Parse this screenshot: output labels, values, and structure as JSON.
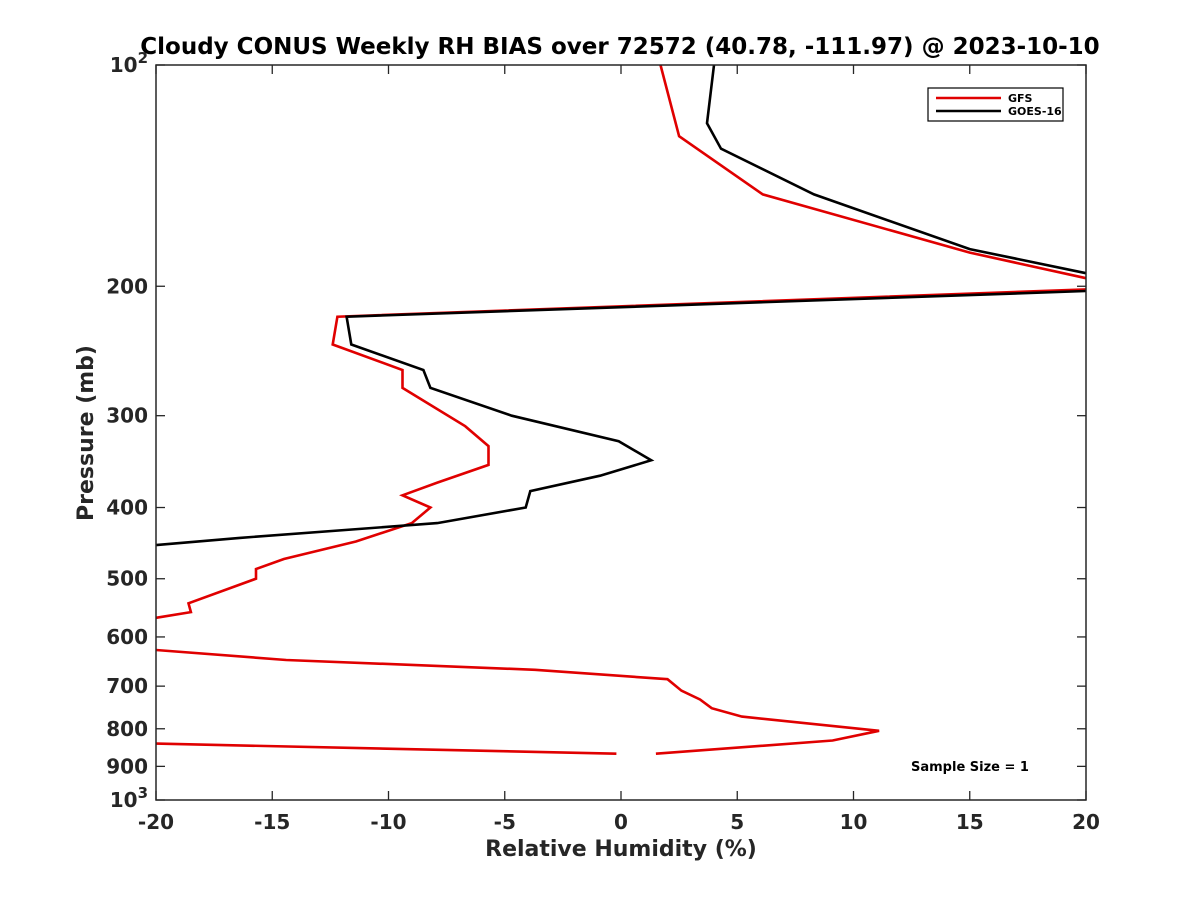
{
  "chart_data": {
    "type": "line",
    "title": "Cloudy CONUS Weekly RH BIAS over 72572 (40.78, -111.97) @ 2023-10-10",
    "xlabel": "Relative Humidity (%)",
    "ylabel": "Pressure (mb)",
    "xlim": [
      -20,
      20
    ],
    "ylim": [
      100,
      1000
    ],
    "yscale": "log",
    "y_reversed": true,
    "grid": false,
    "legend_position": "top-right",
    "x_ticks": [
      {
        "value": -20,
        "label": "-20"
      },
      {
        "value": -15,
        "label": "-15"
      },
      {
        "value": -10,
        "label": "-10"
      },
      {
        "value": -5,
        "label": "-5"
      },
      {
        "value": 0,
        "label": "0"
      },
      {
        "value": 5,
        "label": "5"
      },
      {
        "value": 10,
        "label": "10"
      },
      {
        "value": 15,
        "label": "15"
      },
      {
        "value": 20,
        "label": "20"
      }
    ],
    "y_ticks": [
      {
        "value": 100,
        "base": "10",
        "exp": "2"
      },
      {
        "value": 200,
        "base": "200",
        "exp": ""
      },
      {
        "value": 300,
        "base": "300",
        "exp": ""
      },
      {
        "value": 400,
        "base": "400",
        "exp": ""
      },
      {
        "value": 500,
        "base": "500",
        "exp": ""
      },
      {
        "value": 600,
        "base": "600",
        "exp": ""
      },
      {
        "value": 700,
        "base": "700",
        "exp": ""
      },
      {
        "value": 800,
        "base": "800",
        "exp": ""
      },
      {
        "value": 900,
        "base": "900",
        "exp": ""
      },
      {
        "value": 1000,
        "base": "10",
        "exp": "3"
      }
    ],
    "series": [
      {
        "name": "GFS",
        "color": "#e00000",
        "segments": [
          [
            [
              1.7,
              100
            ],
            [
              2.5,
              125
            ],
            [
              6.1,
              150
            ],
            [
              15.0,
              180
            ],
            [
              20.0,
              195
            ]
          ],
          [
            [
              20.0,
              202
            ],
            [
              -12.2,
              220
            ],
            [
              -12.4,
              240
            ],
            [
              -9.4,
              260
            ],
            [
              -9.4,
              275
            ],
            [
              -6.7,
              310
            ],
            [
              -5.7,
              330
            ],
            [
              -5.7,
              350
            ],
            [
              -7.9,
              370
            ],
            [
              -9.4,
              385
            ],
            [
              -8.2,
              400
            ],
            [
              -9.0,
              420
            ],
            [
              -11.4,
              445
            ],
            [
              -14.5,
              470
            ],
            [
              -15.7,
              485
            ],
            [
              -15.7,
              500
            ],
            [
              -18.6,
              540
            ],
            [
              -18.5,
              555
            ],
            [
              -20.0,
              565
            ]
          ],
          [
            [
              -20.0,
              625
            ],
            [
              -14.4,
              645
            ],
            [
              -3.7,
              665
            ],
            [
              2.0,
              685
            ],
            [
              2.6,
              710
            ],
            [
              3.4,
              730
            ],
            [
              3.9,
              750
            ],
            [
              5.2,
              770
            ],
            [
              11.1,
              805
            ],
            [
              9.1,
              830
            ],
            [
              1.5,
              865
            ]
          ],
          [
            [
              -20.0,
              838
            ],
            [
              -0.2,
              865
            ]
          ]
        ]
      },
      {
        "name": "GOES-16",
        "color": "#000000",
        "segments": [
          [
            [
              4.0,
              100
            ],
            [
              3.7,
              120
            ],
            [
              4.3,
              130
            ],
            [
              8.3,
              150
            ],
            [
              15.0,
              178
            ],
            [
              20.0,
              192
            ]
          ],
          [
            [
              20.0,
              203
            ],
            [
              -11.8,
              220
            ],
            [
              -11.6,
              240
            ],
            [
              -8.5,
              260
            ],
            [
              -8.2,
              275
            ],
            [
              -4.7,
              300
            ],
            [
              -0.1,
              325
            ],
            [
              1.3,
              345
            ],
            [
              -0.9,
              362
            ],
            [
              -3.9,
              380
            ],
            [
              -4.1,
              400
            ],
            [
              -7.9,
              420
            ],
            [
              -16.4,
              440
            ],
            [
              -20.0,
              450
            ]
          ]
        ]
      }
    ],
    "annotations": [
      {
        "text": "Sample Size = 1",
        "location": "bottom-right"
      }
    ]
  }
}
